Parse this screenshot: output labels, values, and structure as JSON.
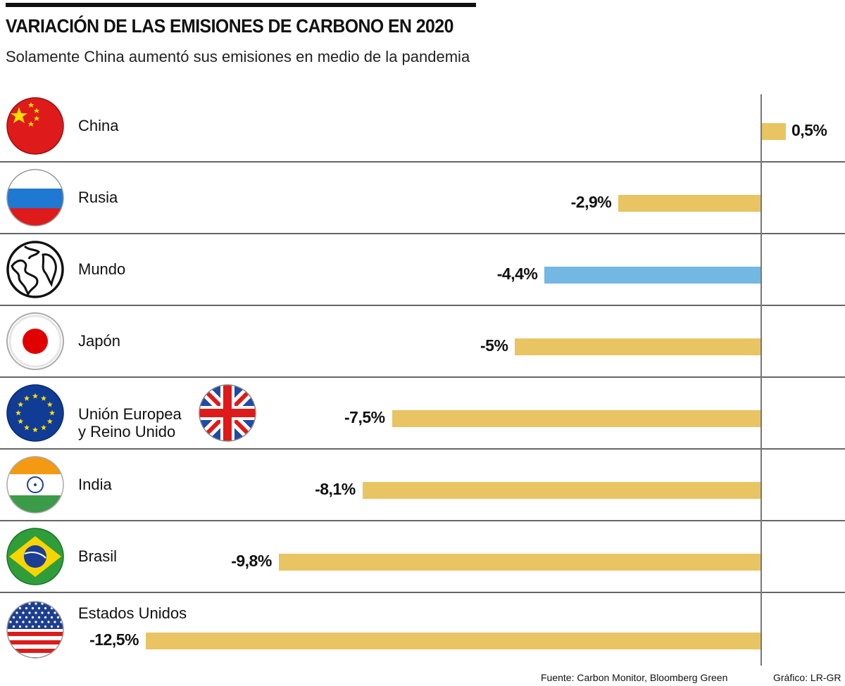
{
  "header": {
    "title": "VARIACIÓN DE LAS EMISIONES DE CARBONO EN 2020",
    "subtitle": "Solamente China aumentó sus emisiones en medio de la pandemia"
  },
  "footer": {
    "source": "Fuente: Carbon Monitor, Bloomberg Green",
    "credit": "Gráfico: LR-GR"
  },
  "colors": {
    "bar_default": "#E8C463",
    "bar_highlight": "#72B8E3"
  },
  "chart_data": {
    "type": "bar",
    "orientation": "horizontal",
    "title": "VARIACIÓN DE LAS EMISIONES DE CARBONO EN 2020",
    "subtitle": "Solamente China aumentó sus emisiones en medio de la pandemia",
    "xlabel": "",
    "ylabel": "",
    "unit": "%",
    "grid": false,
    "legend": "none",
    "xlim": [
      -12.5,
      0.5
    ],
    "categories": [
      "China",
      "Rusia",
      "Mundo",
      "Japón",
      "Unión Europea y Reino Unido",
      "India",
      "Brasil",
      "Estados Unidos"
    ],
    "values": [
      0.5,
      -2.9,
      -4.4,
      -5,
      -7.5,
      -8.1,
      -9.8,
      -12.5
    ],
    "data_labels": [
      "0,5%",
      "-2,9%",
      "-4,4%",
      "-5%",
      "-7,5%",
      "-8,1%",
      "-9,8%",
      "-12,5%"
    ],
    "highlight": [
      "Mundo"
    ],
    "rows": [
      {
        "label_lines": [
          "China"
        ],
        "value": 0.5,
        "value_label": "0,5%",
        "icon": "china-flag-icon",
        "highlight": false
      },
      {
        "label_lines": [
          "Rusia"
        ],
        "value": -2.9,
        "value_label": "-2,9%",
        "icon": "russia-flag-icon",
        "highlight": false
      },
      {
        "label_lines": [
          "Mundo"
        ],
        "value": -4.4,
        "value_label": "-4,4%",
        "icon": "globe-icon",
        "highlight": true
      },
      {
        "label_lines": [
          "Japón"
        ],
        "value": -5,
        "value_label": "-5%",
        "icon": "japan-flag-icon",
        "highlight": false
      },
      {
        "label_lines": [
          "Unión Europea",
          "y Reino Unido"
        ],
        "value": -7.5,
        "value_label": "-7,5%",
        "icon": "eu-flag-icon",
        "icon2": "uk-flag-icon",
        "highlight": false
      },
      {
        "label_lines": [
          "India"
        ],
        "value": -8.1,
        "value_label": "-8,1%",
        "icon": "india-flag-icon",
        "highlight": false
      },
      {
        "label_lines": [
          "Brasil"
        ],
        "value": -9.8,
        "value_label": "-9,8%",
        "icon": "brazil-flag-icon",
        "highlight": false
      },
      {
        "label_lines": [
          "Estados Unidos"
        ],
        "value": -12.5,
        "value_label": "-12,5%",
        "icon": "usa-flag-icon",
        "highlight": false
      }
    ]
  }
}
